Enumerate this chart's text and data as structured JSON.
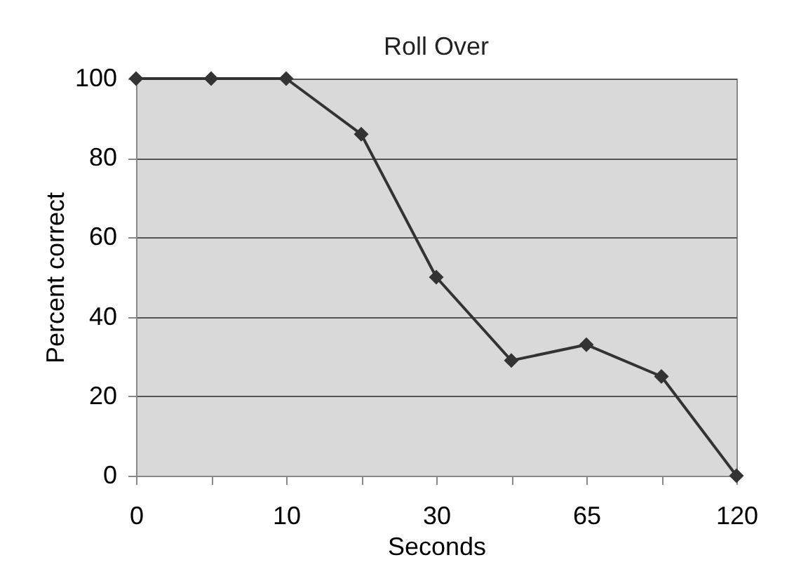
{
  "chart_data": {
    "type": "line",
    "title": "Roll Over",
    "xlabel": "Seconds",
    "ylabel": "Percent correct",
    "categories": [
      "0",
      null,
      "10",
      null,
      "30",
      null,
      "65",
      null,
      "120"
    ],
    "series": [
      {
        "color": "#333333",
        "values": [
          100,
          100,
          100,
          86,
          50,
          29,
          33,
          25,
          0
        ]
      }
    ],
    "ylim": [
      0,
      100
    ],
    "yticks": [
      0,
      20,
      40,
      60,
      80,
      100
    ],
    "grid": "y",
    "marker": "diamond",
    "line_style": "solid",
    "legend": false
  }
}
